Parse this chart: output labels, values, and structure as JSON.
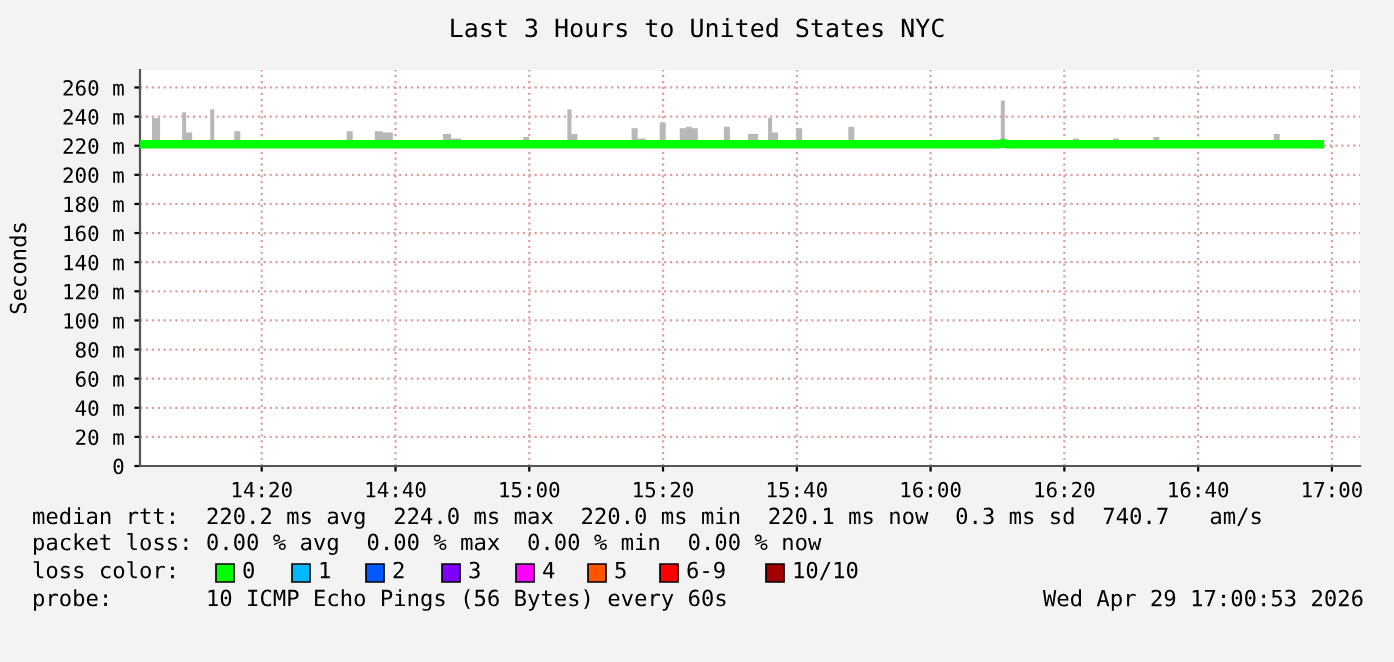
{
  "chart_data": {
    "type": "line",
    "title": "Last 3 Hours to United States NYC",
    "ylabel": "Seconds",
    "x": [
      14.03,
      14.05,
      14.07,
      14.09,
      14.11,
      14.13,
      14.14,
      14.15,
      14.17,
      14.2,
      14.21,
      14.22,
      14.24,
      14.26,
      14.27,
      14.29,
      14.31,
      14.42,
      14.54,
      14.55,
      14.57,
      14.61,
      14.62,
      14.65,
      14.67,
      14.73,
      14.74,
      14.76,
      14.78,
      14.79,
      14.82,
      14.84,
      14.86,
      14.87,
      14.89,
      14.91,
      14.92,
      14.94,
      14.98,
      14.99,
      15.01,
      15.09,
      15.1,
      15.11,
      15.13,
      15.2,
      15.21,
      15.23,
      15.25,
      15.26,
      15.28,
      15.3,
      15.32,
      15.33,
      15.35,
      15.37,
      15.38,
      15.4,
      15.41,
      15.43,
      15.48,
      15.49,
      15.51,
      15.54,
      15.55,
      15.56,
      15.58,
      15.59,
      15.6,
      15.61,
      15.63,
      15.66,
      15.67,
      15.69,
      15.79,
      15.8,
      15.82,
      15.85,
      15.86,
      15.88,
      16.02,
      16.17,
      16.18,
      16.19,
      16.3,
      16.31,
      16.33,
      16.35,
      16.36,
      16.38,
      16.45,
      16.46,
      16.48,
      16.55,
      16.56,
      16.58,
      16.85,
      16.86,
      16.88,
      16.97
    ],
    "series": [
      {
        "color": "#00ff00",
        "values": [
          221,
          221,
          221,
          221,
          221,
          221,
          221,
          221,
          221,
          221,
          221,
          221,
          221,
          221,
          221,
          221,
          221,
          221,
          221,
          221,
          221,
          221,
          221,
          221,
          221,
          221,
          221,
          221,
          221,
          221,
          221,
          221,
          221,
          221,
          221,
          221,
          221,
          221,
          221,
          221,
          221,
          221,
          221,
          221,
          221,
          221,
          221,
          221,
          221,
          221,
          221,
          221,
          221,
          221,
          221,
          221,
          221,
          221,
          221,
          221,
          221,
          221,
          221,
          221,
          221,
          221,
          221,
          221,
          221,
          221,
          221,
          221,
          221,
          221,
          221,
          221,
          221,
          221,
          221,
          221,
          221,
          221,
          222,
          221,
          221,
          221,
          221,
          221,
          221,
          221,
          221,
          221,
          221,
          221,
          221,
          221,
          221,
          221,
          221,
          221
        ],
        "lower": [
          220,
          220,
          220,
          220,
          220,
          220,
          220,
          220,
          220,
          220,
          220,
          220,
          220,
          220,
          220,
          220,
          220,
          220,
          220,
          220,
          220,
          220,
          220,
          220,
          220,
          220,
          220,
          220,
          220,
          220,
          220,
          220,
          220,
          220,
          220,
          220,
          220,
          220,
          220,
          220,
          220,
          220,
          220,
          220,
          220,
          220,
          220,
          220,
          220,
          220,
          220,
          220,
          220,
          220,
          220,
          220,
          220,
          220,
          220,
          220,
          220,
          220,
          220,
          220,
          220,
          220,
          220,
          220,
          220,
          220,
          220,
          220,
          220,
          220,
          220,
          220,
          220,
          220,
          220,
          220,
          220,
          220,
          220,
          220,
          220,
          220,
          220,
          220,
          220,
          220,
          220,
          220,
          220,
          220,
          220,
          220,
          220,
          220,
          220,
          220
        ],
        "upper": [
          221,
          221,
          239,
          221,
          221,
          221,
          243,
          229,
          221,
          221,
          245,
          224,
          221,
          221,
          230,
          222,
          221,
          221,
          221,
          230,
          221,
          221,
          230,
          229,
          221,
          221,
          224,
          221,
          221,
          228,
          225,
          221,
          221,
          224,
          221,
          221,
          224,
          221,
          221,
          226,
          221,
          221,
          245,
          228,
          221,
          221,
          222,
          221,
          221,
          232,
          225,
          221,
          221,
          236,
          221,
          221,
          232,
          233,
          232,
          221,
          221,
          233,
          221,
          221,
          228,
          228,
          221,
          221,
          239,
          229,
          221,
          221,
          232,
          221,
          221,
          233,
          221,
          221,
          224,
          221,
          221,
          221,
          251,
          221,
          221,
          224,
          221,
          221,
          225,
          221,
          221,
          225,
          221,
          221,
          226,
          221,
          221,
          228,
          221,
          221
        ]
      }
    ],
    "xlim": [
      14.03,
      17.07
    ],
    "xticks": [
      {
        "value": 14.3333,
        "label": "14:20"
      },
      {
        "value": 14.6667,
        "label": "14:40"
      },
      {
        "value": 15.0,
        "label": "15:00"
      },
      {
        "value": 15.3333,
        "label": "15:20"
      },
      {
        "value": 15.6667,
        "label": "15:40"
      },
      {
        "value": 16.0,
        "label": "16:00"
      },
      {
        "value": 16.3333,
        "label": "16:20"
      },
      {
        "value": 16.6667,
        "label": "16:40"
      },
      {
        "value": 17.0,
        "label": "17:00"
      }
    ],
    "ylim": [
      0,
      272
    ],
    "yticks": [
      0,
      {
        "value": 20,
        "label": "20 m"
      },
      {
        "value": 40,
        "label": "40 m"
      },
      {
        "value": 60,
        "label": "60 m"
      },
      {
        "value": 80,
        "label": "80 m"
      },
      {
        "value": 100,
        "label": "100 m"
      },
      {
        "value": 120,
        "label": "120 m"
      },
      {
        "value": 140,
        "label": "140 m"
      },
      {
        "value": 160,
        "label": "160 m"
      },
      {
        "value": 180,
        "label": "180 m"
      },
      {
        "value": 200,
        "label": "200 m"
      },
      {
        "value": 220,
        "label": "220 m"
      },
      {
        "value": 240,
        "label": "240 m"
      },
      {
        "value": 260,
        "label": "260 m"
      }
    ],
    "grid": true,
    "line_style": "solid",
    "annotations": [
      "median rtt:  220.2 ms avg  224.0 ms max  220.0 ms min  220.1 ms now  0.3 ms sd  740.7   am/s",
      "packet loss: 0.00 % avg  0.00 % max  0.00 % min  0.00 % now",
      "loss color:",
      "0",
      "1",
      "2",
      "3",
      "4",
      "5",
      "6-9",
      "10/10",
      "probe:       10 ICMP Echo Pings (56 Bytes) every 60s",
      "Wed Apr 29 17:00:53 2026"
    ]
  }
}
